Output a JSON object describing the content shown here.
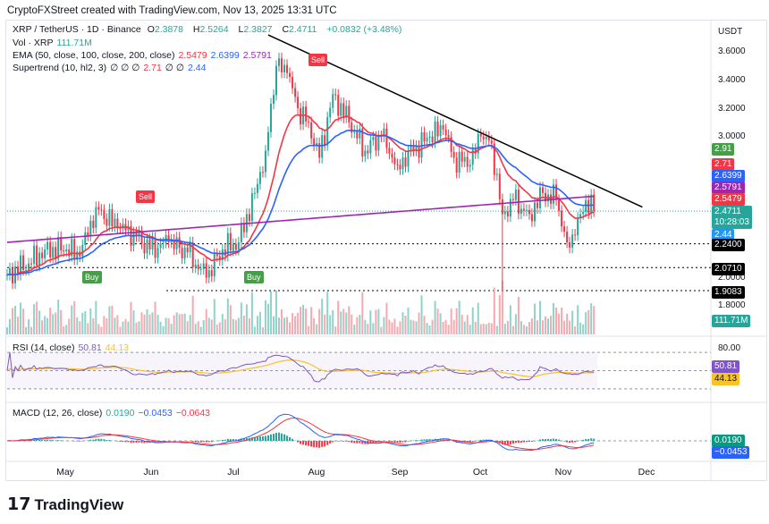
{
  "header": "CryptoFXStreet created with TradingView.com, Nov 13, 2025 13:31 UTC",
  "symbol": {
    "name": "XRP / TetherUS · 1D · Binance",
    "o_label": "O",
    "o": "2.3878",
    "h_label": "H",
    "h": "2.5264",
    "l_label": "L",
    "l": "2.3827",
    "c_label": "C",
    "c": "2.4711",
    "change": "+0.0832 (+3.48%)"
  },
  "volume": {
    "label": "Vol · XRP",
    "value": "111.71M"
  },
  "ema": {
    "label": "EMA (50, close, 100, close, 200, close)",
    "v50": "2.5479",
    "v100": "2.6399",
    "v200": "2.5791"
  },
  "supertrend": {
    "label": "Supertrend (10, hl2, 3)",
    "na": "∅ ∅ ∅",
    "up": "2.71",
    "na2": "∅ ∅",
    "down": "2.44"
  },
  "rsi": {
    "label": "RSI (14, close)",
    "value": "50.81",
    "ma": "44.13",
    "level": "80.00"
  },
  "macd": {
    "label": "MACD (12, 26, close)",
    "hist": "0.0190",
    "macd": "−0.0453",
    "signal": "−0.0643"
  },
  "price_axis": {
    "currency": "USDT",
    "ticks": [
      "3.6000",
      "3.4000",
      "3.2000",
      "3.0000",
      "2.0000",
      "1.8000"
    ],
    "tags": {
      "st_up2": "2.91",
      "st_up": "2.71",
      "ema100": "2.6399",
      "ema200": "2.5791",
      "ema50": "2.5479",
      "last": "2.4711",
      "countdown": "10:28:03",
      "st_down": "2.44",
      "lvl1": "2.2400",
      "lvl2": "2.0710",
      "lvl3": "1.9083",
      "vol": "111.71M"
    }
  },
  "months": [
    "May",
    "Jun",
    "Jul",
    "Aug",
    "Sep",
    "Oct",
    "Nov",
    "Dec"
  ],
  "signals": {
    "sell": "Sell",
    "buy": "Buy"
  },
  "logo": "TradingView",
  "colors": {
    "up": "#26a69a",
    "down": "#f23645",
    "ema50": "#f23645",
    "ema100": "#2962ff",
    "ema200": "#9c27b0",
    "rsi": "#7e57c2",
    "rsi_ma": "#f7c325"
  },
  "chart_data": {
    "type": "candlestick",
    "title": "XRP / TetherUS · 1D · Binance",
    "ylim": [
      1.75,
      3.75
    ],
    "x_start": "Apr 9",
    "x_end": "Dec 20",
    "closes_by_day": [
      [
        0,
        2.02
      ],
      [
        8,
        2.1
      ],
      [
        14,
        2.2
      ],
      [
        22,
        2.2
      ],
      [
        27,
        2.15
      ],
      [
        33,
        2.5
      ],
      [
        41,
        2.35
      ],
      [
        47,
        2.32
      ],
      [
        53,
        2.2
      ],
      [
        60,
        2.25
      ],
      [
        67,
        2.18
      ],
      [
        74,
        2.0
      ],
      [
        80,
        2.2
      ],
      [
        86,
        2.25
      ],
      [
        92,
        2.6
      ],
      [
        96,
        2.9
      ],
      [
        100,
        3.5
      ],
      [
        104,
        3.45
      ],
      [
        108,
        3.2
      ],
      [
        112,
        3.1
      ],
      [
        116,
        2.85
      ],
      [
        121,
        3.3
      ],
      [
        127,
        3.1
      ],
      [
        133,
        2.9
      ],
      [
        139,
        3.0
      ],
      [
        145,
        2.8
      ],
      [
        151,
        2.9
      ],
      [
        157,
        3.0
      ],
      [
        162,
        3.05
      ],
      [
        166,
        2.85
      ],
      [
        172,
        2.8
      ],
      [
        176,
        3.0
      ],
      [
        180,
        2.95
      ],
      [
        184,
        2.45
      ],
      [
        188,
        2.55
      ],
      [
        194,
        2.45
      ],
      [
        199,
        2.6
      ],
      [
        204,
        2.55
      ],
      [
        208,
        2.25
      ],
      [
        211,
        2.3
      ],
      [
        215,
        2.55
      ],
      [
        218,
        2.47
      ]
    ],
    "levels": [
      2.24,
      2.071,
      1.9083
    ],
    "trendline": [
      [
        97,
        3.72
      ],
      [
        236,
        2.5
      ]
    ],
    "signals": [
      {
        "type": "sell",
        "day": 103,
        "price": 3.6
      },
      {
        "type": "sell",
        "day": 50,
        "price": 2.58
      },
      {
        "type": "buy",
        "day": 31,
        "price": 2.07
      },
      {
        "type": "buy",
        "day": 91,
        "price": 2.05
      }
    ],
    "rsi_levels": [
      80,
      50,
      20
    ]
  }
}
